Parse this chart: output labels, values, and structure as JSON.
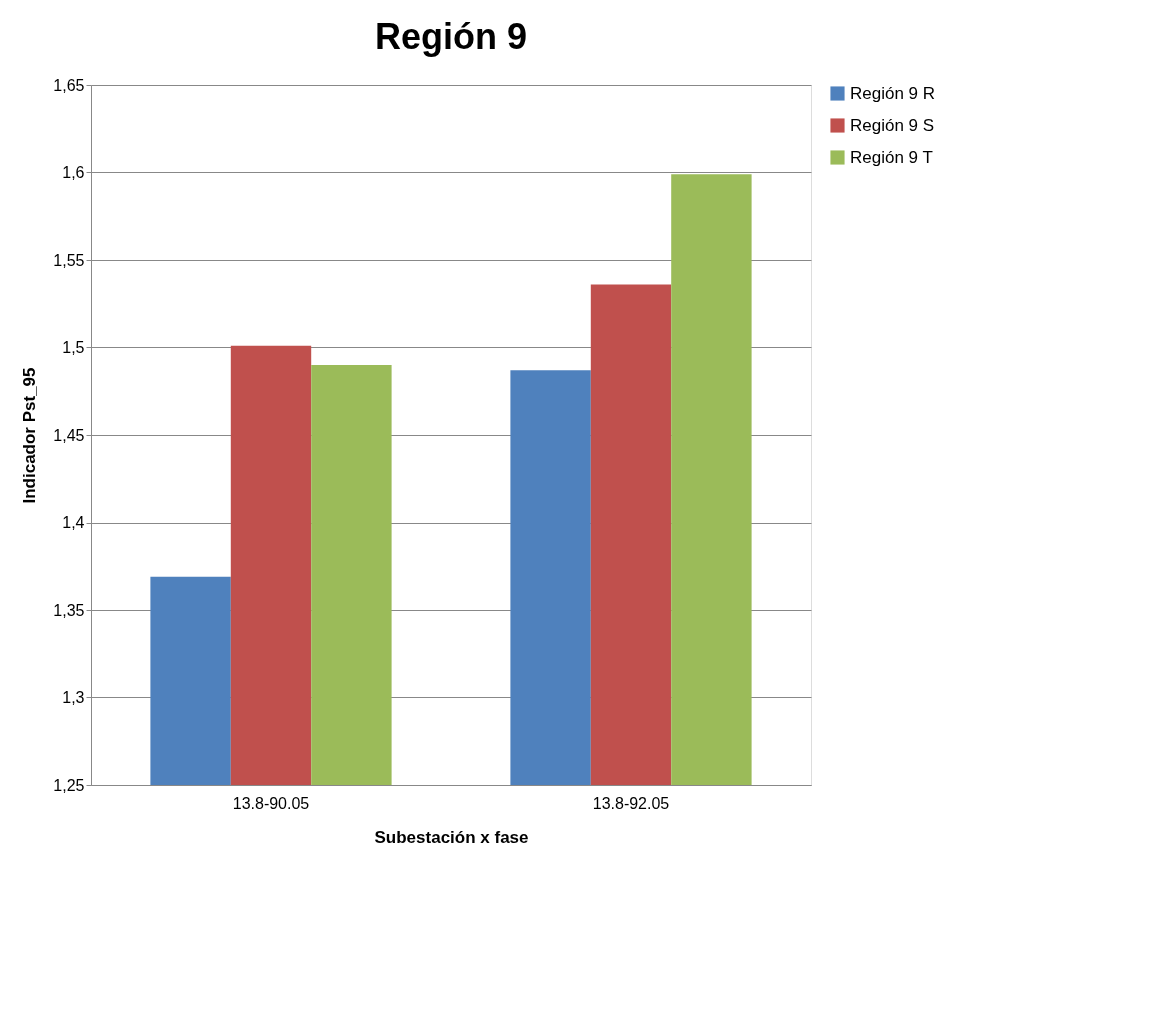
{
  "chart_data": {
    "type": "bar",
    "title": "Región 9",
    "xlabel": "Subestación x fase",
    "ylabel": "Indicador Pst_95",
    "categories": [
      "13.8-90.05",
      "13.8-92.05"
    ],
    "series": [
      {
        "name": "Región 9 R",
        "color": "#4f81bd",
        "values": [
          1.369,
          1.487
        ]
      },
      {
        "name": "Región 9 S",
        "color": "#c0504d",
        "values": [
          1.501,
          1.536
        ]
      },
      {
        "name": "Región 9 T",
        "color": "#9bbb59",
        "values": [
          1.49,
          1.599
        ]
      }
    ],
    "ylim": [
      1.25,
      1.65
    ],
    "yticks": [
      {
        "value": 1.25,
        "label": "1,25"
      },
      {
        "value": 1.3,
        "label": "1,3"
      },
      {
        "value": 1.35,
        "label": "1,35"
      },
      {
        "value": 1.4,
        "label": "1,4"
      },
      {
        "value": 1.45,
        "label": "1,45"
      },
      {
        "value": 1.5,
        "label": "1,5"
      },
      {
        "value": 1.55,
        "label": "1,55"
      },
      {
        "value": 1.6,
        "label": "1,6"
      },
      {
        "value": 1.65,
        "label": "1,65"
      }
    ],
    "grid": "y",
    "legend": "right"
  }
}
